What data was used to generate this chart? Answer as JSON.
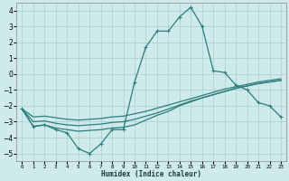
{
  "xlabel": "Humidex (Indice chaleur)",
  "x": [
    0,
    1,
    2,
    3,
    4,
    5,
    6,
    7,
    8,
    9,
    10,
    11,
    12,
    13,
    14,
    15,
    16,
    17,
    18,
    19,
    20,
    21,
    22,
    23
  ],
  "line_main": [
    -2.2,
    -3.3,
    -3.2,
    -3.5,
    -3.7,
    -4.7,
    -5.0,
    -4.4,
    -3.5,
    -3.5,
    -0.5,
    1.7,
    2.7,
    2.7,
    3.6,
    4.2,
    3.0,
    0.2,
    0.1,
    -0.7,
    -1.0,
    -1.8,
    -2.0,
    -2.7
  ],
  "line_a": [
    -2.2,
    -3.3,
    -3.2,
    -3.4,
    -3.5,
    -3.6,
    -3.55,
    -3.5,
    -3.4,
    -3.35,
    -3.2,
    -2.9,
    -2.6,
    -2.35,
    -2.0,
    -1.75,
    -1.5,
    -1.3,
    -1.1,
    -0.9,
    -0.75,
    -0.6,
    -0.5,
    -0.4
  ],
  "line_b": [
    -2.2,
    -3.0,
    -2.95,
    -3.1,
    -3.2,
    -3.25,
    -3.2,
    -3.15,
    -3.05,
    -3.0,
    -2.85,
    -2.65,
    -2.45,
    -2.2,
    -1.95,
    -1.7,
    -1.5,
    -1.3,
    -1.1,
    -0.9,
    -0.75,
    -0.6,
    -0.5,
    -0.4
  ],
  "line_c": [
    -2.2,
    -2.7,
    -2.65,
    -2.75,
    -2.85,
    -2.9,
    -2.85,
    -2.8,
    -2.7,
    -2.65,
    -2.5,
    -2.35,
    -2.15,
    -1.95,
    -1.75,
    -1.55,
    -1.35,
    -1.15,
    -0.95,
    -0.8,
    -0.65,
    -0.5,
    -0.4,
    -0.3
  ],
  "line_color": "#2e7d7d",
  "bg_color": "#ceeaea",
  "grid_color": "#aacece",
  "ylim": [
    -5.5,
    4.5
  ],
  "yticks": [
    -5,
    -4,
    -3,
    -2,
    -1,
    0,
    1,
    2,
    3,
    4
  ]
}
